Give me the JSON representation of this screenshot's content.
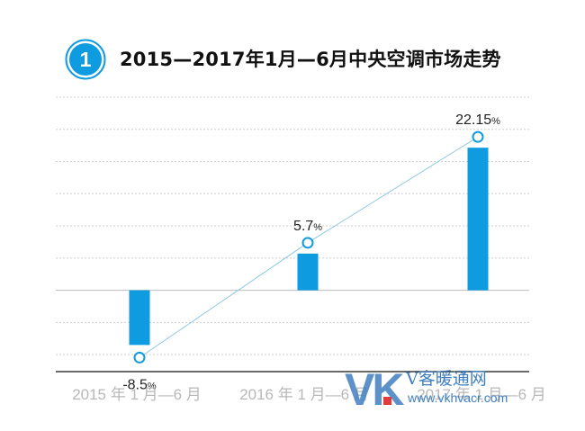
{
  "badge": {
    "number": "1"
  },
  "title": "2015—2017年1月—6月中央空调市场走势",
  "colors": {
    "bar": "#0e9be0",
    "line": "#8ec7e6",
    "grid": "#cfcfcf",
    "axis": "#111111",
    "badge": "#0e9be0",
    "watermark": "#3f7fc0",
    "watermark_accent": "#e23b3b"
  },
  "chart_data": {
    "type": "bar",
    "title": "2015—2017年1月—6月中央空调市场走势",
    "categories": [
      "2015 年 1 月—6 月",
      "2016 年 1 月—6 月",
      "2017 年 1 月—6 月"
    ],
    "series": [
      {
        "values": [
          -8.5,
          5.7,
          22.15
        ],
        "unit": "%"
      }
    ],
    "data_labels": [
      {
        "num": "-8.5",
        "unit": "%"
      },
      {
        "num": "5.7",
        "unit": "%"
      },
      {
        "num": "22.15",
        "unit": "%"
      }
    ],
    "overlay_line": true,
    "ylim": [
      -12.5,
      30
    ],
    "grid": true,
    "grid_style": "dotted",
    "xlabel": "",
    "ylabel": ""
  },
  "watermark": {
    "logo_text": "VK",
    "chinese": "V客暖通网",
    "url": "www.vkhvacr.com"
  }
}
